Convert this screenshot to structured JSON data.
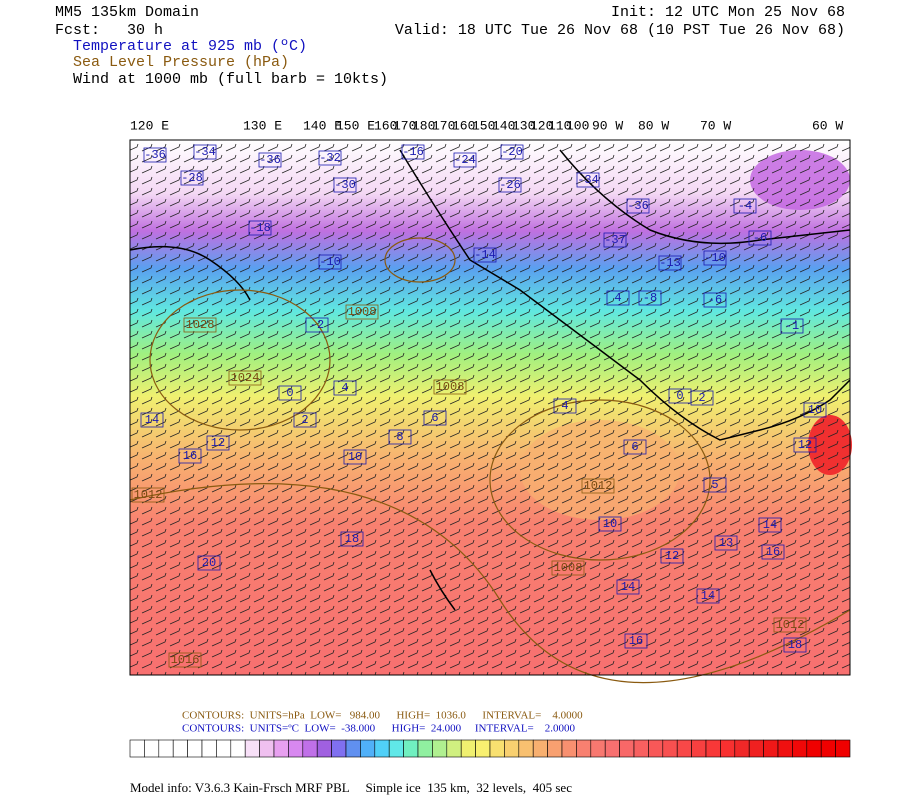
{
  "header": {
    "domain": "MM5 135km Domain",
    "fcst": "Fcst:   30 h",
    "temperature": "Temperature at 925 mb (ºC)",
    "pressure": "Sea Level Pressure (hPa)",
    "wind": "Wind at 1000 mb (full barb = 10kts)",
    "init": "Init: 12 UTC Mon 25 Nov 68",
    "valid": "Valid: 18 UTC Tue 26 Nov 68 (10 PST Tue 26 Nov 68)"
  },
  "longitude_labels": [
    "120 E",
    "130 E",
    "140 E",
    "150 E",
    "160",
    "170",
    "180",
    "170",
    "160",
    "150",
    "140",
    "130",
    "120",
    "110",
    "100",
    "90 W",
    "80 W",
    "70 W",
    "60 W"
  ],
  "temperature_labels": [
    "-36",
    "-34",
    "-28",
    "-36",
    "-32",
    "-30",
    "-16",
    "-24",
    "-20",
    "-26",
    "-34",
    "-36",
    "-37",
    "-18",
    "-14",
    "-10",
    "-10",
    "-13",
    "-6",
    "-4",
    "-8",
    "-6",
    "-1",
    "-2",
    "0",
    "2",
    "4",
    "6",
    "8",
    "10",
    "14",
    "12",
    "16",
    "4",
    "6",
    "0",
    "2",
    "5",
    "10",
    "12",
    "10",
    "12",
    "14",
    "13",
    "14",
    "16",
    "14",
    "16",
    "18",
    "20",
    "18",
    "4"
  ],
  "pressure_labels": [
    "1028",
    "1024",
    "1008",
    "1008",
    "1012",
    "1008",
    "1016",
    "1012",
    "1012"
  ],
  "footer": {
    "pressure_contours": "CONTOURS:  UNITS=hPa  LOW=   984.00      HIGH=  1036.0      INTERVAL=    4.0000",
    "temperature_contours": "CONTOURS:  UNITS=ºC  LOW=  -38.000      HIGH=  24.000     INTERVAL=    2.0000",
    "model_info": "Model info: V3.6.3 Kain-Frsch MRF PBL     Simple ice  135 km,  32 levels,  405 sec"
  }
}
